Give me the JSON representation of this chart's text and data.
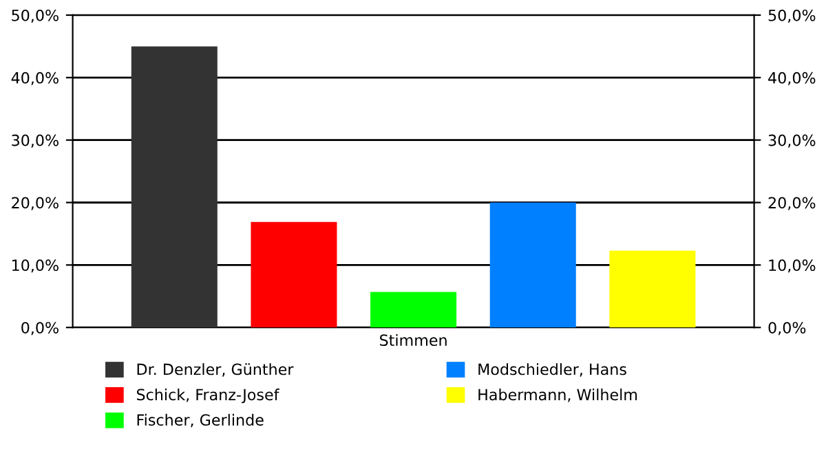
{
  "chart_data": {
    "type": "bar",
    "categories": [
      "Stimmen"
    ],
    "series": [
      {
        "name": "Dr. Denzler, Günther",
        "color": "#333333",
        "values": [
          45.0
        ]
      },
      {
        "name": "Schick, Franz-Josef",
        "color": "#ff0000",
        "values": [
          16.9
        ]
      },
      {
        "name": "Fischer, Gerlinde",
        "color": "#00ff00",
        "values": [
          5.7
        ]
      },
      {
        "name": "Modschiedler, Hans",
        "color": "#0080ff",
        "values": [
          20.0
        ]
      },
      {
        "name": "Habermann, Wilhelm",
        "color": "#ffff00",
        "values": [
          12.3
        ]
      }
    ],
    "ylim": [
      0,
      50
    ],
    "yticks": [
      {
        "value": 0,
        "label": "0,0%"
      },
      {
        "value": 10,
        "label": "10,0%"
      },
      {
        "value": 20,
        "label": "20,0%"
      },
      {
        "value": 30,
        "label": "30,0%"
      },
      {
        "value": 40,
        "label": "40,0%"
      },
      {
        "value": 50,
        "label": "50,0%"
      }
    ],
    "grid": "y",
    "legend": "bottom"
  }
}
